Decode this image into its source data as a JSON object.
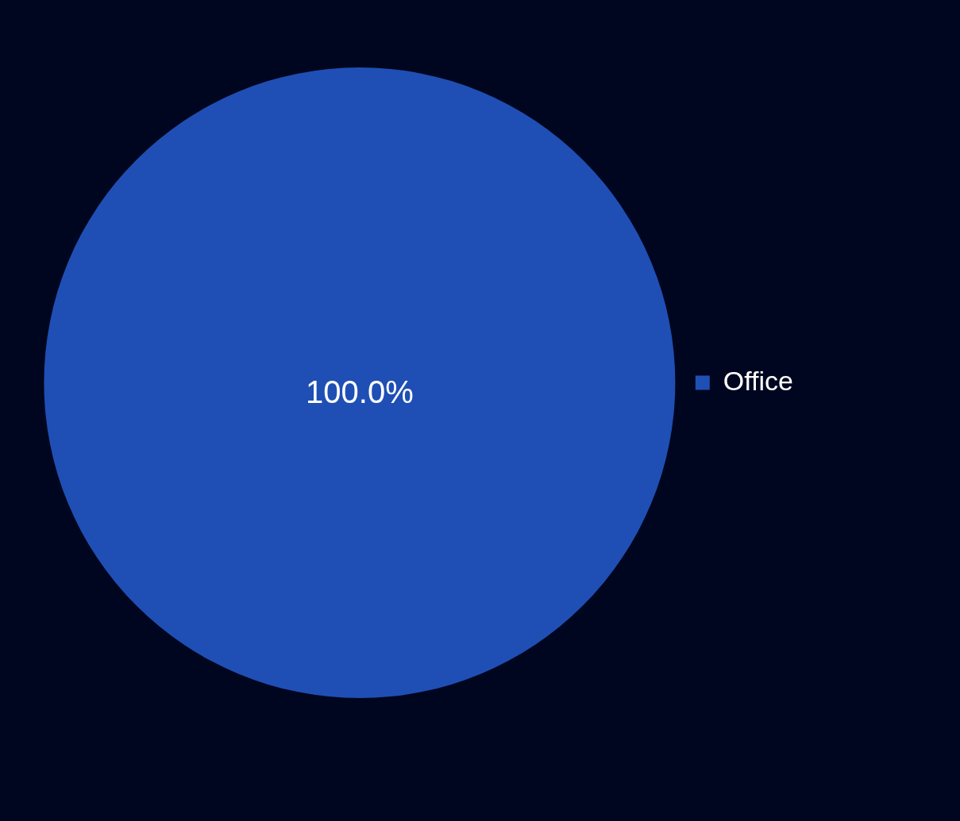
{
  "chart_data": {
    "type": "pie",
    "categories": [
      "Office"
    ],
    "values": [
      100
    ],
    "colors": [
      "#1f4fb4"
    ],
    "value_labels": [
      "100.0%"
    ],
    "legend": "right"
  }
}
